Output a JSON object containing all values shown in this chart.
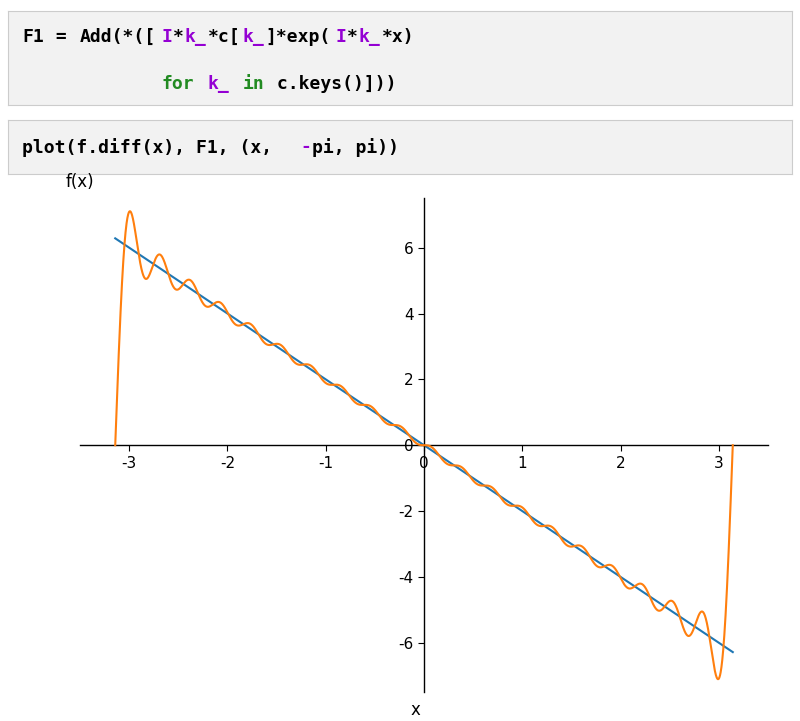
{
  "box1_line1": [
    {
      "text": "F1",
      "color": "#000000"
    },
    {
      "text": " = ",
      "color": "#000000"
    },
    {
      "text": "Add(*([",
      "color": "#000000"
    },
    {
      "text": "I",
      "color": "#9400D3"
    },
    {
      "text": "*",
      "color": "#000000"
    },
    {
      "text": "k_",
      "color": "#9400D3"
    },
    {
      "text": "*c[",
      "color": "#000000"
    },
    {
      "text": "k_",
      "color": "#9400D3"
    },
    {
      "text": "]*exp(",
      "color": "#000000"
    },
    {
      "text": "I",
      "color": "#9400D3"
    },
    {
      "text": "*",
      "color": "#000000"
    },
    {
      "text": "k_",
      "color": "#9400D3"
    },
    {
      "text": "*x)",
      "color": "#000000"
    }
  ],
  "box1_line2": [
    {
      "text": "            ",
      "color": "#000000"
    },
    {
      "text": "for",
      "color": "#228B22"
    },
    {
      "text": " ",
      "color": "#000000"
    },
    {
      "text": "k_",
      "color": "#9400D3"
    },
    {
      "text": " ",
      "color": "#000000"
    },
    {
      "text": "in",
      "color": "#228B22"
    },
    {
      "text": " c.keys()]))",
      "color": "#000000"
    }
  ],
  "box2_pieces": [
    {
      "text": "plot(f.diff(x), F1, (x, ",
      "color": "#000000"
    },
    {
      "text": "-",
      "color": "#9400D3"
    },
    {
      "text": "pi, pi))",
      "color": "#000000"
    }
  ],
  "line_exact_color": "#1f77b4",
  "line_fourier_color": "#ff7f0e",
  "N_fourier": 20,
  "xlim": [
    -3.5,
    3.5
  ],
  "ylim": [
    -7.5,
    7.5
  ],
  "xticks": [
    -3,
    -2,
    -1,
    0,
    1,
    2,
    3
  ],
  "yticks": [
    -6,
    -4,
    -2,
    0,
    2,
    4,
    6
  ],
  "xlabel": "x",
  "ylabel": "f(x)",
  "box_bg": "#f2f2f2",
  "box_edge": "#cccccc"
}
